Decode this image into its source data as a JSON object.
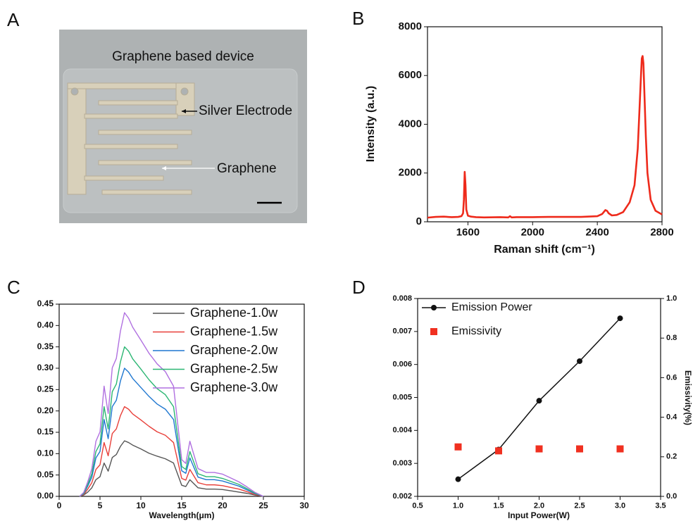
{
  "panel_labels": [
    "A",
    "B",
    "C",
    "D"
  ],
  "photo": {
    "title": "Graphene based device",
    "annotations": [
      "Silver Electrode",
      "Graphene"
    ]
  },
  "chart_data": [
    {
      "type": "line",
      "xlabel": "Raman shift (cm⁻¹)",
      "ylabel": "Intensity (a.u.)",
      "x": [
        1350,
        1400,
        1450,
        1500,
        1540,
        1560,
        1570,
        1575,
        1580,
        1585,
        1590,
        1600,
        1620,
        1650,
        1700,
        1800,
        1850,
        1860,
        1870,
        1900,
        2000,
        2100,
        2200,
        2300,
        2400,
        2430,
        2450,
        2460,
        2470,
        2490,
        2520,
        2560,
        2600,
        2630,
        2650,
        2660,
        2670,
        2675,
        2680,
        2685,
        2690,
        2700,
        2710,
        2730,
        2760,
        2800
      ],
      "values": [
        170,
        200,
        210,
        190,
        200,
        230,
        350,
        900,
        2050,
        1500,
        500,
        250,
        210,
        190,
        180,
        190,
        180,
        230,
        180,
        190,
        190,
        200,
        200,
        200,
        230,
        320,
        480,
        450,
        350,
        260,
        280,
        400,
        800,
        1500,
        3000,
        4500,
        6000,
        6700,
        6800,
        6500,
        5500,
        3500,
        2000,
        900,
        450,
        300
      ],
      "color": "#ee2a1b",
      "xlim": [
        1350,
        2800
      ],
      "xticks": [
        1600,
        2000,
        2400,
        2800
      ],
      "ylim": [
        0,
        8000
      ],
      "yticks": [
        0,
        2000,
        4000,
        6000,
        8000
      ]
    },
    {
      "type": "line",
      "xlabel": "Wavelength(μm)",
      "x": [
        2.5,
        3,
        3.5,
        4,
        4.5,
        5,
        5.5,
        6,
        6.5,
        7,
        7.5,
        8,
        8.5,
        9,
        10,
        11,
        12,
        13,
        14,
        15,
        15.5,
        16,
        17,
        18,
        19,
        20,
        21,
        22,
        23,
        24,
        25
      ],
      "series": [
        {
          "name": "Graphene-1.0w",
          "color": "#555555",
          "values": [
            0,
            0.003,
            0.01,
            0.02,
            0.039,
            0.046,
            0.078,
            0.059,
            0.091,
            0.098,
            0.117,
            0.13,
            0.126,
            0.12,
            0.111,
            0.101,
            0.094,
            0.088,
            0.078,
            0.026,
            0.023,
            0.039,
            0.02,
            0.017,
            0.017,
            0.016,
            0.013,
            0.01,
            0.007,
            0.003,
            0
          ]
        },
        {
          "name": "Graphene-1.5w",
          "color": "#e8403a",
          "values": [
            0,
            0.004,
            0.017,
            0.032,
            0.063,
            0.074,
            0.126,
            0.095,
            0.147,
            0.158,
            0.189,
            0.21,
            0.204,
            0.193,
            0.179,
            0.164,
            0.151,
            0.143,
            0.126,
            0.042,
            0.038,
            0.063,
            0.032,
            0.027,
            0.027,
            0.025,
            0.021,
            0.017,
            0.011,
            0.004,
            0
          ]
        },
        {
          "name": "Graphene-2.0w",
          "color": "#1f77d0",
          "values": [
            0,
            0.006,
            0.024,
            0.045,
            0.09,
            0.105,
            0.18,
            0.135,
            0.21,
            0.225,
            0.27,
            0.3,
            0.291,
            0.276,
            0.255,
            0.234,
            0.216,
            0.204,
            0.18,
            0.06,
            0.054,
            0.09,
            0.045,
            0.039,
            0.039,
            0.036,
            0.03,
            0.024,
            0.015,
            0.006,
            0
          ]
        },
        {
          "name": "Graphene-2.5w",
          "color": "#2bb673",
          "values": [
            0,
            0.007,
            0.028,
            0.053,
            0.105,
            0.123,
            0.21,
            0.158,
            0.245,
            0.263,
            0.315,
            0.35,
            0.34,
            0.322,
            0.298,
            0.273,
            0.252,
            0.238,
            0.21,
            0.07,
            0.063,
            0.105,
            0.053,
            0.046,
            0.046,
            0.042,
            0.035,
            0.028,
            0.018,
            0.007,
            0
          ]
        },
        {
          "name": "Graphene-3.0w",
          "color": "#b070e0",
          "values": [
            0,
            0.009,
            0.034,
            0.065,
            0.129,
            0.151,
            0.258,
            0.194,
            0.301,
            0.323,
            0.387,
            0.43,
            0.417,
            0.396,
            0.366,
            0.335,
            0.31,
            0.292,
            0.258,
            0.086,
            0.077,
            0.129,
            0.065,
            0.056,
            0.056,
            0.052,
            0.043,
            0.034,
            0.022,
            0.009,
            0
          ]
        }
      ],
      "xlim": [
        0,
        30
      ],
      "xticks": [
        0,
        5,
        10,
        15,
        20,
        25,
        30
      ],
      "ylim": [
        0,
        0.45
      ],
      "yticks": [
        {
          "value": 0,
          "label": "0.00"
        },
        0.05,
        {
          "value": 0.1,
          "label": "0.10"
        },
        0.15,
        {
          "value": 0.2,
          "label": "0.20"
        },
        0.25,
        {
          "value": 0.3,
          "label": "0.30"
        },
        0.35,
        {
          "value": 0.4,
          "label": "0.40"
        },
        0.45
      ],
      "legend": "upper right"
    },
    {
      "type": "line",
      "xlabel": "Input Power(W)",
      "y2label": "Emissivity(%)",
      "x": [
        1,
        1.5,
        2,
        2.5,
        3
      ],
      "series": [
        {
          "name": "Emission Power",
          "color": "#111111",
          "line": true,
          "marker": "circle",
          "values": [
            0.00252,
            0.00342,
            0.0049,
            0.0061,
            0.0074
          ]
        },
        {
          "name": "Emissivity",
          "color": "#f03020",
          "line": false,
          "marker": "square",
          "axis": "y2",
          "values": [
            0.25,
            0.23,
            0.24,
            0.24,
            0.24
          ]
        }
      ],
      "xlim": [
        0.5,
        3.5
      ],
      "xticks": [
        0.5,
        {
          "value": 1,
          "label": "1.0"
        },
        1.5,
        {
          "value": 2,
          "label": "2.0"
        },
        2.5,
        {
          "value": 3,
          "label": "3.0"
        },
        3.5
      ],
      "ylim": [
        0.002,
        0.008
      ],
      "yticks": [
        0.002,
        0.003,
        0.004,
        0.005,
        0.006,
        0.007,
        0.008
      ],
      "y2lim": [
        0,
        1
      ],
      "y2ticks": [
        {
          "value": 0,
          "label": "0.0"
        },
        0.2,
        0.4,
        0.6,
        0.8,
        {
          "value": 1,
          "label": "1.0"
        }
      ],
      "legend": "upper left"
    }
  ]
}
